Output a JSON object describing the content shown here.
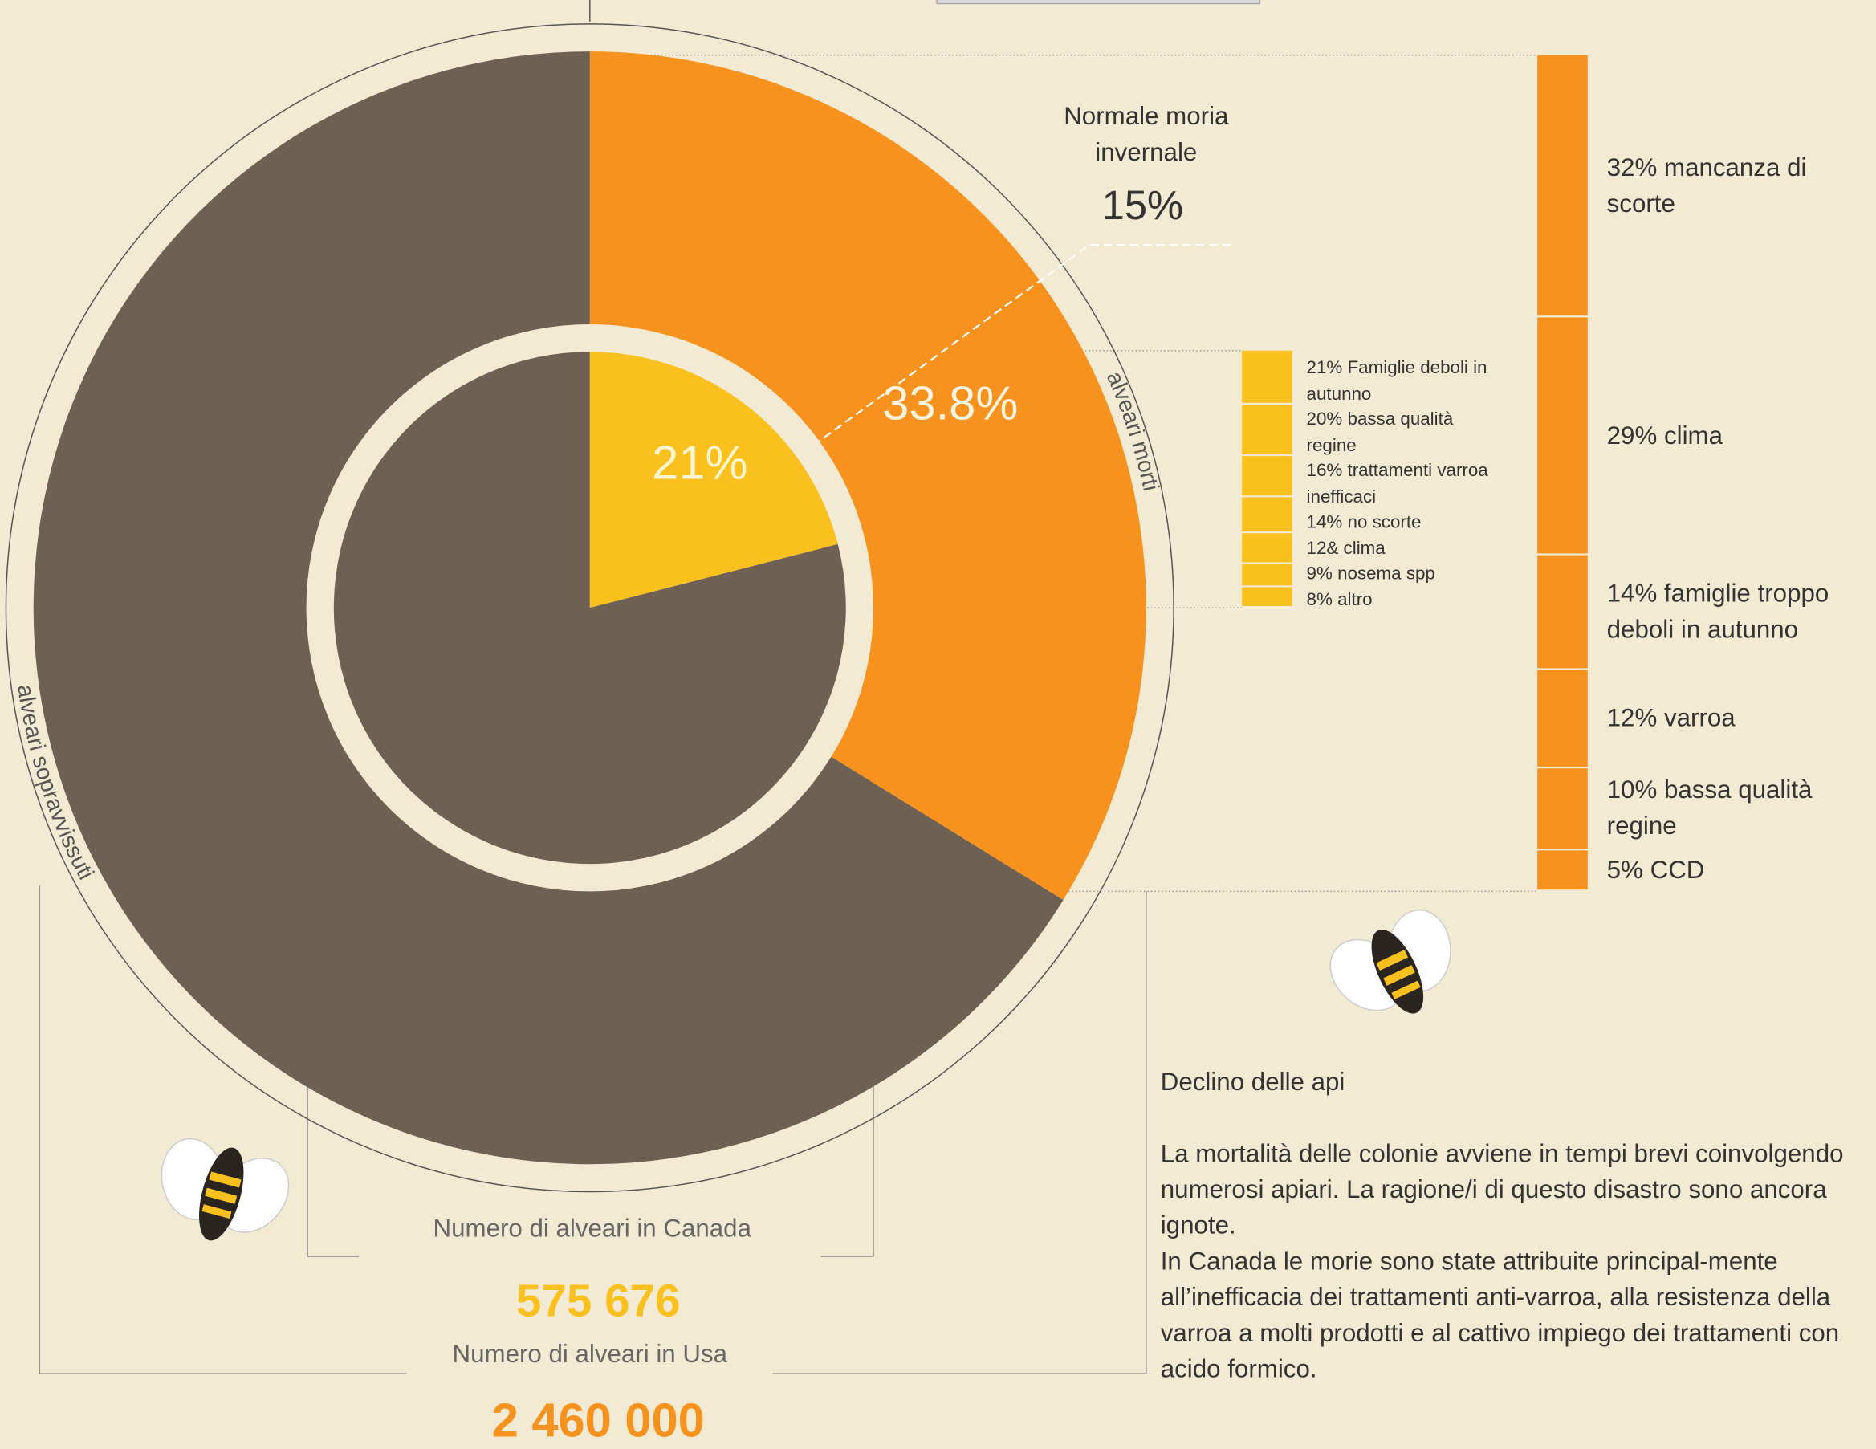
{
  "chart_data": [
    {
      "type": "pie",
      "title": "Numero di alveari in Usa",
      "total": "2 460 000",
      "categories": [
        "alveari morti",
        "alveari sopravvissuti"
      ],
      "values": [
        33.8,
        66.2
      ],
      "value_labels": [
        "33.8%",
        null
      ],
      "colors": [
        "#f7921e",
        "#6f6054"
      ],
      "annotation": {
        "text": "Normale moria invernale",
        "value": 15,
        "value_label": "15%"
      }
    },
    {
      "type": "pie",
      "title": "Numero di alveari in Canada",
      "total": "575 676",
      "values": [
        21,
        79
      ],
      "value_labels": [
        "21%",
        null
      ],
      "colors": [
        "#f9c01e",
        "#6f6054"
      ]
    },
    {
      "type": "stacked-bar",
      "color": "#f7921e",
      "categories": [
        "32% mancanza di scorte",
        "29% clima",
        "14% famiglie troppo deboli in autunno",
        "12% varroa",
        "10% bassa qualità regine",
        "5% CCD"
      ],
      "values": [
        32,
        29,
        14,
        12,
        10,
        5
      ]
    },
    {
      "type": "stacked-bar",
      "color": "#f9c01e",
      "categories": [
        "21% Famiglie deboli in autunno",
        "20% bassa qualità regine",
        "16% trattamenti varroa inefficaci",
        "14% no scorte",
        "12& clima",
        "9% nosema spp",
        "8% altro"
      ],
      "values": [
        21,
        20,
        16,
        14,
        12,
        9,
        8
      ]
    }
  ],
  "text_block": {
    "title": "Declino delle api",
    "paragraphs": [
      "La mortalità delle colonie avviene in tempi brevi coinvolgendo numerosi apiari. La ragione/i di questo disastro sono ancora ignote.",
      "In Canada le morie sono state attribuite principal-mente all’inefficacia dei trattamenti anti-varroa, alla resistenza della varroa a molti prodotti e al cattivo impiego dei trattamenti con acido formico."
    ]
  }
}
